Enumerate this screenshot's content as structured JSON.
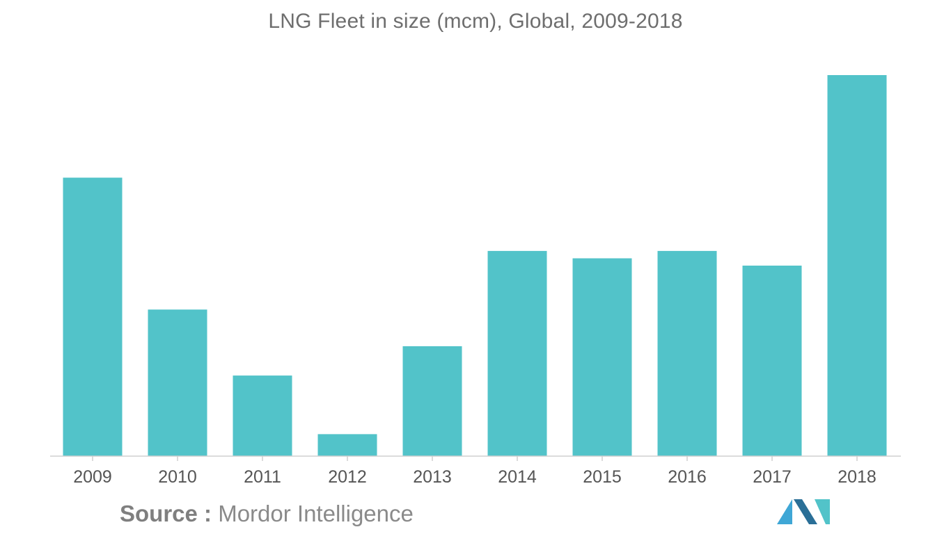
{
  "chart_data": {
    "type": "bar",
    "title": "LNG Fleet in size (mcm), Global, 2009-2018",
    "xlabel": "",
    "ylabel": "",
    "categories": [
      "2009",
      "2010",
      "2011",
      "2012",
      "2013",
      "2014",
      "2015",
      "2016",
      "2017",
      "2018"
    ],
    "values": [
      7.6,
      4.0,
      2.2,
      0.6,
      3.0,
      5.6,
      5.4,
      5.6,
      5.2,
      10.4
    ],
    "value_note_unit": "relative (no y-axis printed)",
    "ylim": [
      0,
      10.4
    ],
    "grid": false,
    "legend": "none",
    "bar_color": "#52c3c9"
  },
  "footer": {
    "source_label": "Source :",
    "source_text": " Mordor Intelligence"
  },
  "logo": {
    "colors": [
      "#3fa7d6",
      "#2a6f97",
      "#52c3c9"
    ]
  }
}
